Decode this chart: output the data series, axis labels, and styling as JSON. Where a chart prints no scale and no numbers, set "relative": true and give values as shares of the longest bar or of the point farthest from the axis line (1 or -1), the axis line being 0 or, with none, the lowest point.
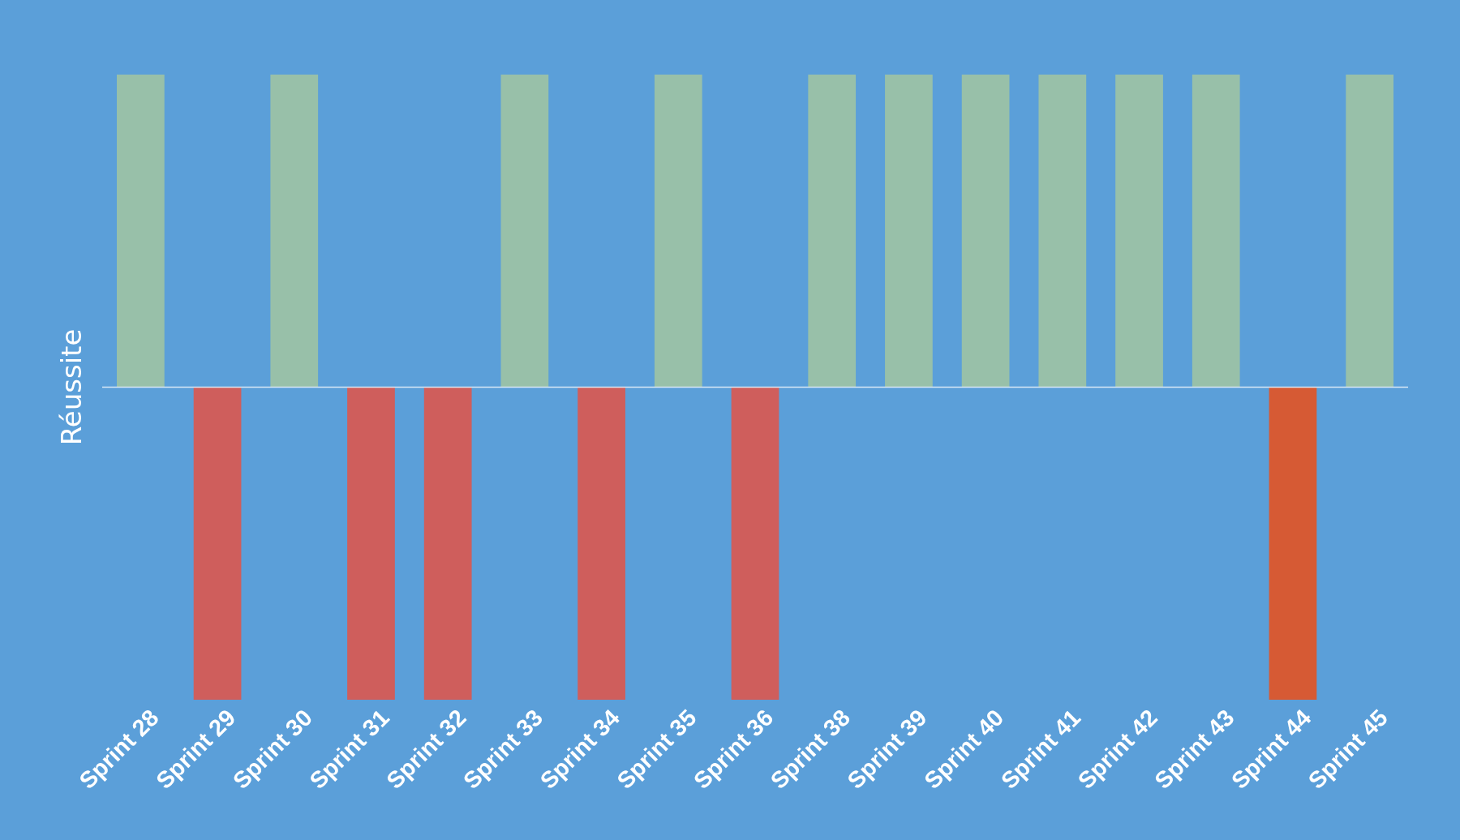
{
  "chart_data": {
    "type": "bar",
    "relative": true,
    "ylabel": "Réussite",
    "categories": [
      "Sprint 28",
      "Sprint 29",
      "Sprint 30",
      "Sprint 31",
      "Sprint 32",
      "Sprint 33",
      "Sprint 34",
      "Sprint 35",
      "Sprint 36",
      "Sprint 38",
      "Sprint 39",
      "Sprint 40",
      "Sprint 41",
      "Sprint 42",
      "Sprint 43",
      "Sprint 44",
      "Sprint 45"
    ],
    "values": [
      1,
      -1,
      1,
      -1,
      -1,
      1,
      -1,
      1,
      -1,
      1,
      1,
      1,
      1,
      1,
      1,
      -1,
      1
    ],
    "colors": [
      "#98c0a9",
      "#cf5e5c",
      "#98c0a9",
      "#cf5e5c",
      "#cf5e5c",
      "#98c0a9",
      "#cf5e5c",
      "#98c0a9",
      "#cf5e5c",
      "#98c0a9",
      "#98c0a9",
      "#98c0a9",
      "#98c0a9",
      "#98c0a9",
      "#98c0a9",
      "#d65a34",
      "#98c0a9"
    ]
  }
}
